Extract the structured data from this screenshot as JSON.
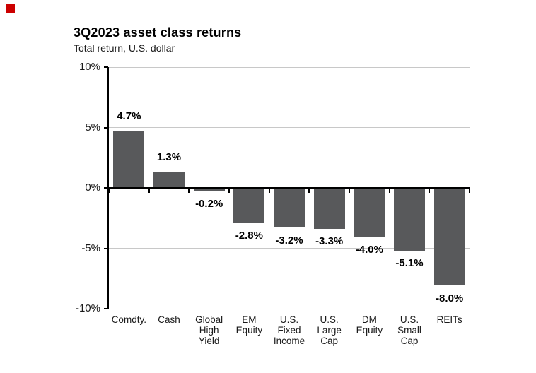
{
  "marker": {
    "color": "#cc0000"
  },
  "chart_data": {
    "type": "bar",
    "title": "3Q2023 asset class returns",
    "subtitle": "Total return, U.S. dollar",
    "categories": [
      "Comdty.",
      "Cash",
      "Global High Yield",
      "EM Equity",
      "U.S. Fixed Income",
      "U.S. Large Cap",
      "DM Equity",
      "U.S. Small Cap",
      "REITs"
    ],
    "category_label_lines": [
      [
        "Comdty."
      ],
      [
        "Cash"
      ],
      [
        "Global",
        "High",
        "Yield"
      ],
      [
        "EM",
        "Equity"
      ],
      [
        "U.S.",
        "Fixed",
        "Income"
      ],
      [
        "U.S.",
        "Large",
        "Cap"
      ],
      [
        "DM",
        "Equity"
      ],
      [
        "U.S.",
        "Small",
        "Cap"
      ],
      [
        "REITs"
      ]
    ],
    "values": [
      4.7,
      1.3,
      -0.2,
      -2.8,
      -3.2,
      -3.3,
      -4.0,
      -5.1,
      -8.0
    ],
    "value_labels": [
      "4.7%",
      "1.3%",
      "-0.2%",
      "-2.8%",
      "-3.2%",
      "-3.3%",
      "-4.0%",
      "-5.1%",
      "-8.0%"
    ],
    "ylabel": "",
    "xlabel": "",
    "ylim": [
      -10,
      10
    ],
    "y_ticks": [
      {
        "value": 10,
        "label": "10%"
      },
      {
        "value": 5,
        "label": "5%"
      },
      {
        "value": 0,
        "label": "0%"
      },
      {
        "value": -5,
        "label": "-5%"
      },
      {
        "value": -10,
        "label": "-10%"
      }
    ],
    "grid": "on",
    "legend": "none",
    "bar_color": "#58595b",
    "grid_color": "#c8c8c8",
    "axis_color": "#000000"
  }
}
